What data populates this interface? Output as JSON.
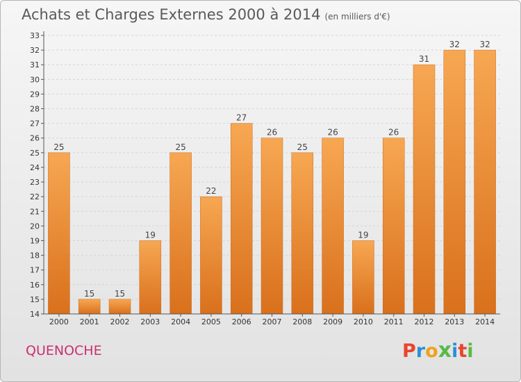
{
  "header": {
    "title": "Achats et Charges Externes 2000 à 2014",
    "unit": "(en milliers d'€)"
  },
  "footer": {
    "place": "QUENOCHE",
    "logo_text": "Proxiti",
    "logo_colors": [
      "#e8452e",
      "#2e8fd6",
      "#f0a21b",
      "#5ab947",
      "#2e8fd6",
      "#e8452e",
      "#5ab947"
    ]
  },
  "colors": {
    "bar_light": "#f7a752",
    "bar_dark": "#d9701c",
    "grid": "#d5d5d5",
    "axis": "#555555"
  },
  "chart_data": {
    "type": "bar",
    "categories": [
      "2000",
      "2001",
      "2002",
      "2003",
      "2004",
      "2005",
      "2006",
      "2007",
      "2008",
      "2009",
      "2010",
      "2011",
      "2012",
      "2013",
      "2014"
    ],
    "values": [
      25,
      15,
      15,
      19,
      25,
      22,
      27,
      26,
      25,
      26,
      19,
      26,
      31,
      32,
      32
    ],
    "ylim": [
      14,
      33
    ],
    "yticks": [
      14,
      15,
      16,
      17,
      18,
      19,
      20,
      21,
      22,
      23,
      24,
      25,
      26,
      27,
      28,
      29,
      30,
      31,
      32,
      33
    ],
    "grid": true,
    "xlabel": "",
    "ylabel": ""
  }
}
